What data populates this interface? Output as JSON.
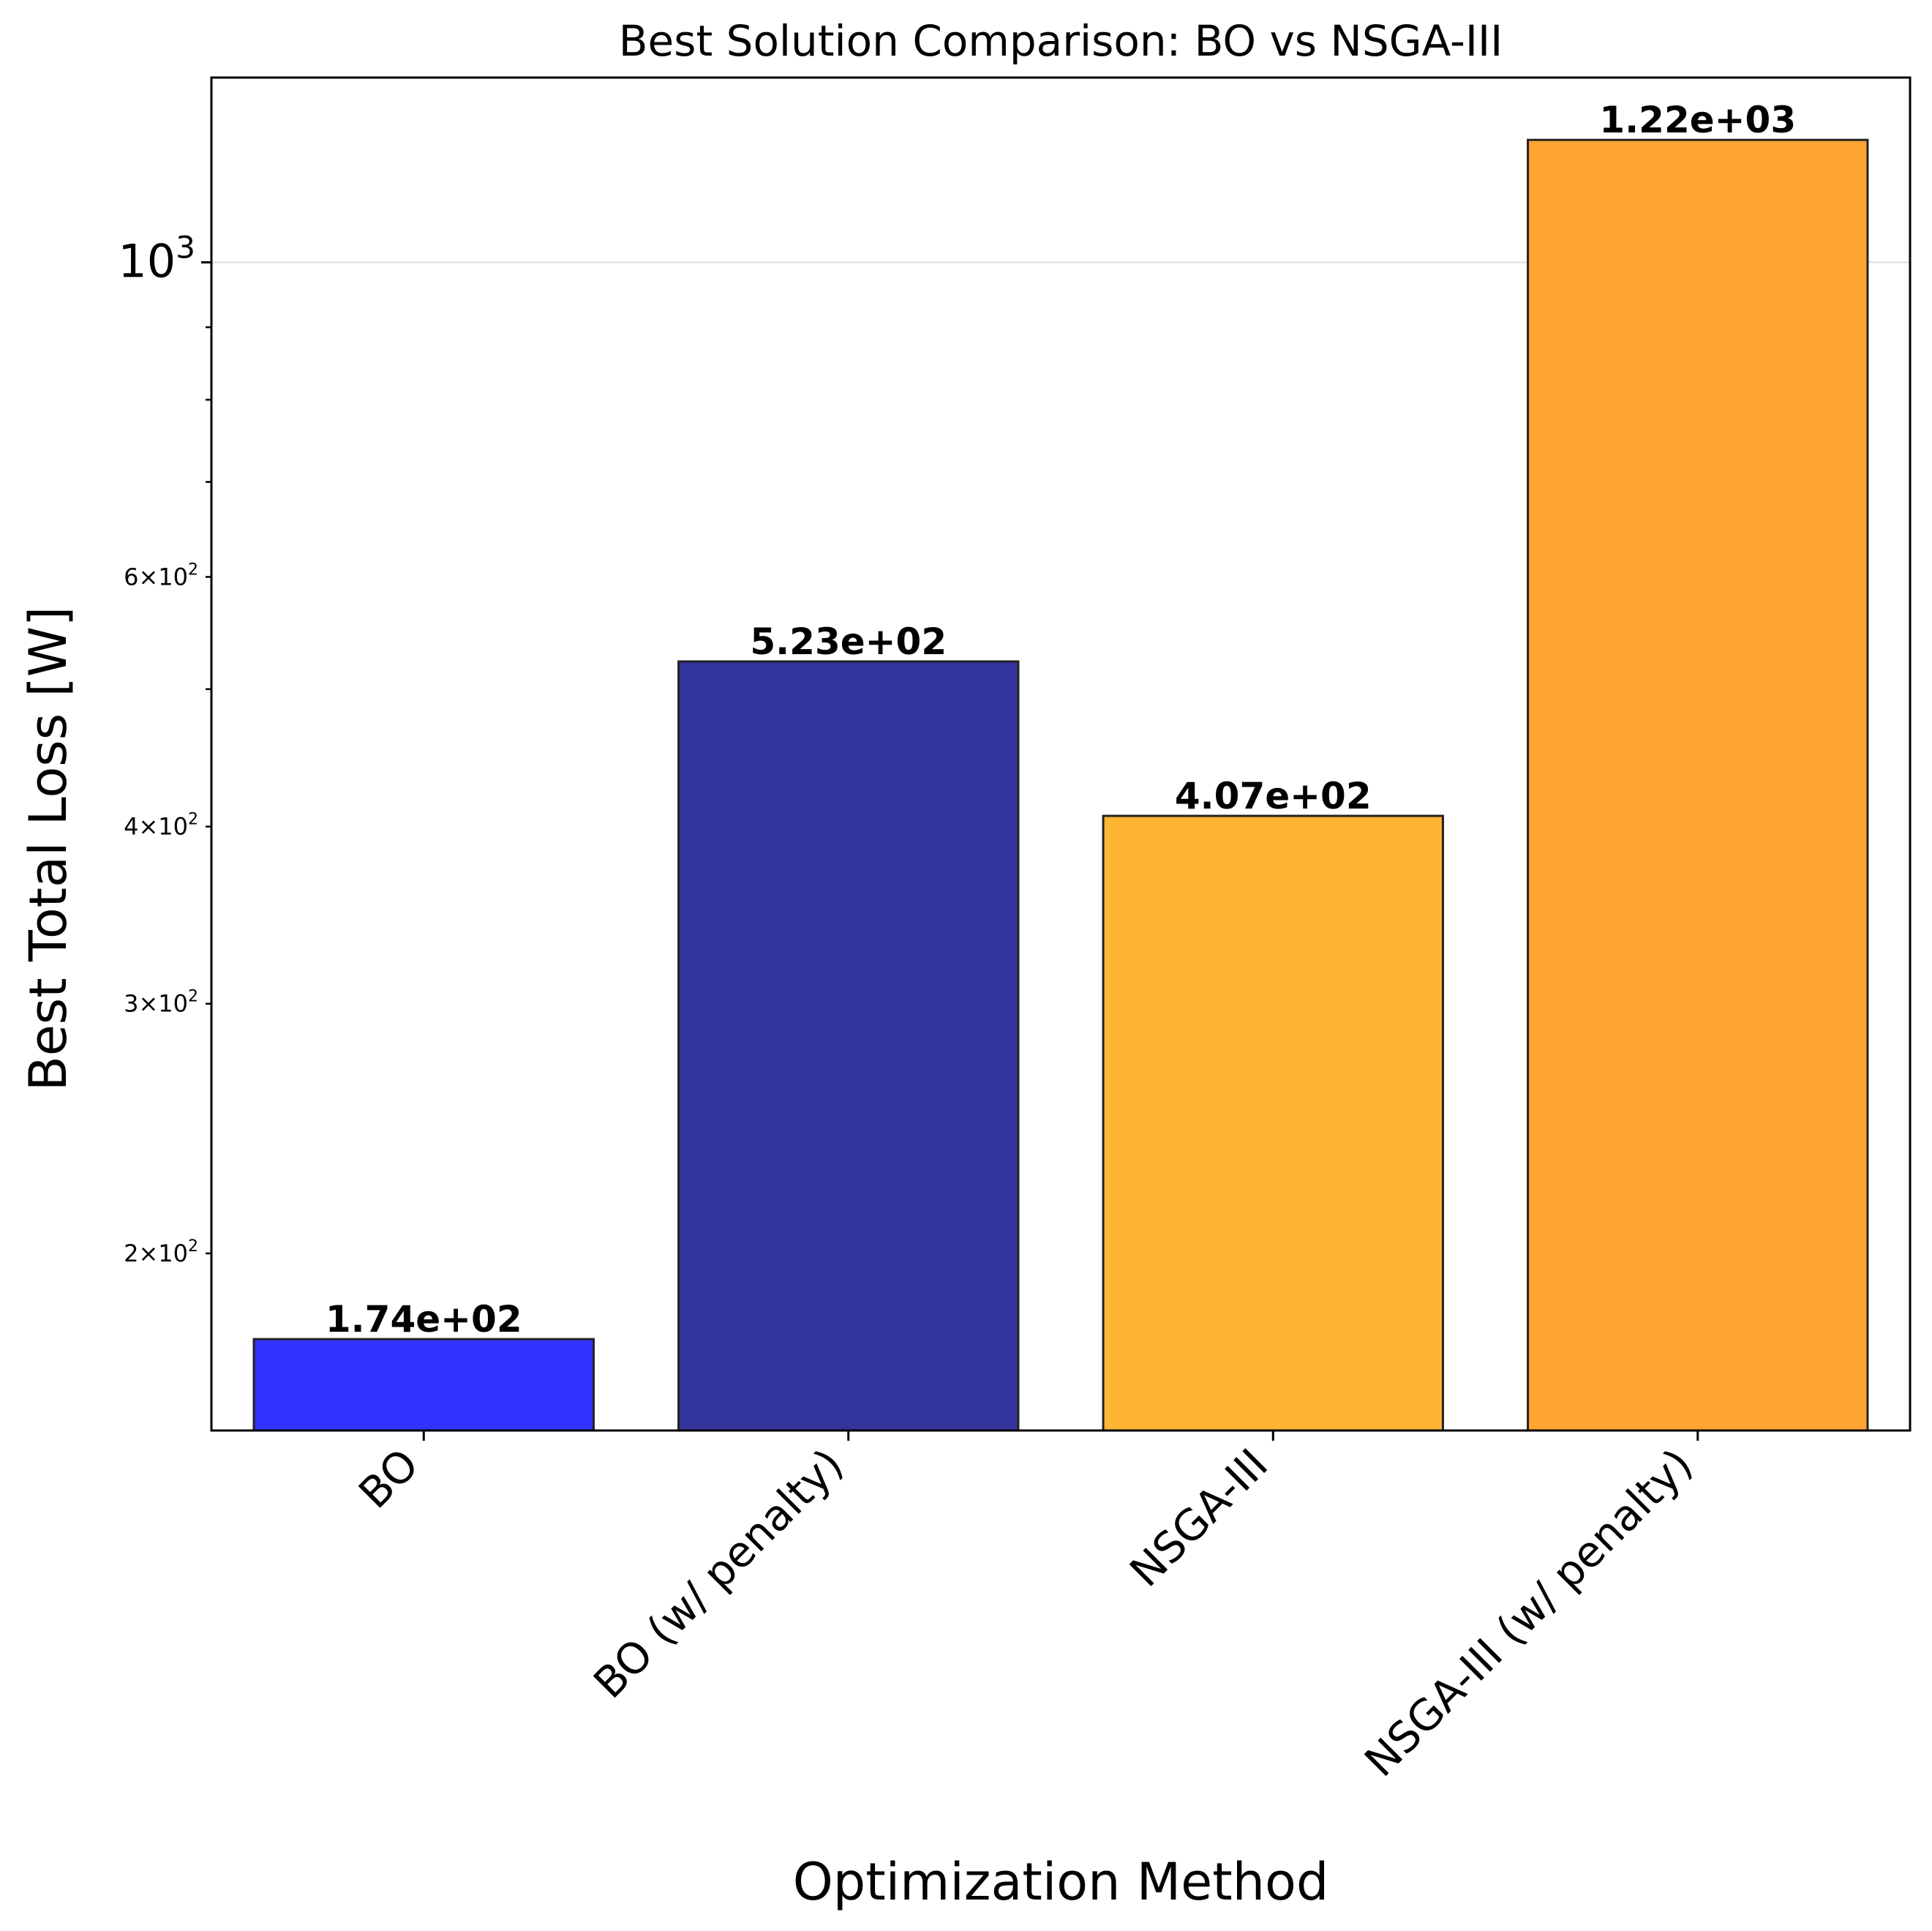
{
  "chart_data": {
    "type": "bar",
    "title": "Best Solution Comparison: BO vs NSGA-III",
    "xlabel": "Optimization Method",
    "ylabel": "Best Total Loss [W]",
    "yscale": "log",
    "ylim": [
      150,
      1350
    ],
    "grid": "horizontal major gridline at 10^3",
    "categories": [
      "BO",
      "BO (w/ penalty)",
      "NSGA-III",
      "NSGA-III (w/ penalty)"
    ],
    "values": [
      174,
      523,
      407,
      1220
    ],
    "value_labels": [
      "1.74e+02",
      "5.23e+02",
      "4.07e+02",
      "1.22e+03"
    ],
    "colors": [
      "#3333ff",
      "#33339c",
      "#ffb534",
      "#ffa433"
    ],
    "ytick_major": [
      {
        "value": 1000,
        "base": "10",
        "exp": "3"
      }
    ],
    "ytick_minor": [
      {
        "value": 200,
        "mant": "2",
        "base": "10",
        "exp": "2"
      },
      {
        "value": 300,
        "mant": "3",
        "base": "10",
        "exp": "2"
      },
      {
        "value": 400,
        "mant": "4",
        "base": "10",
        "exp": "2"
      },
      {
        "value": 500
      },
      {
        "value": 600,
        "mant": "6",
        "base": "10",
        "exp": "2"
      },
      {
        "value": 700
      },
      {
        "value": 800
      },
      {
        "value": 900
      }
    ],
    "times_symbol": "×"
  }
}
